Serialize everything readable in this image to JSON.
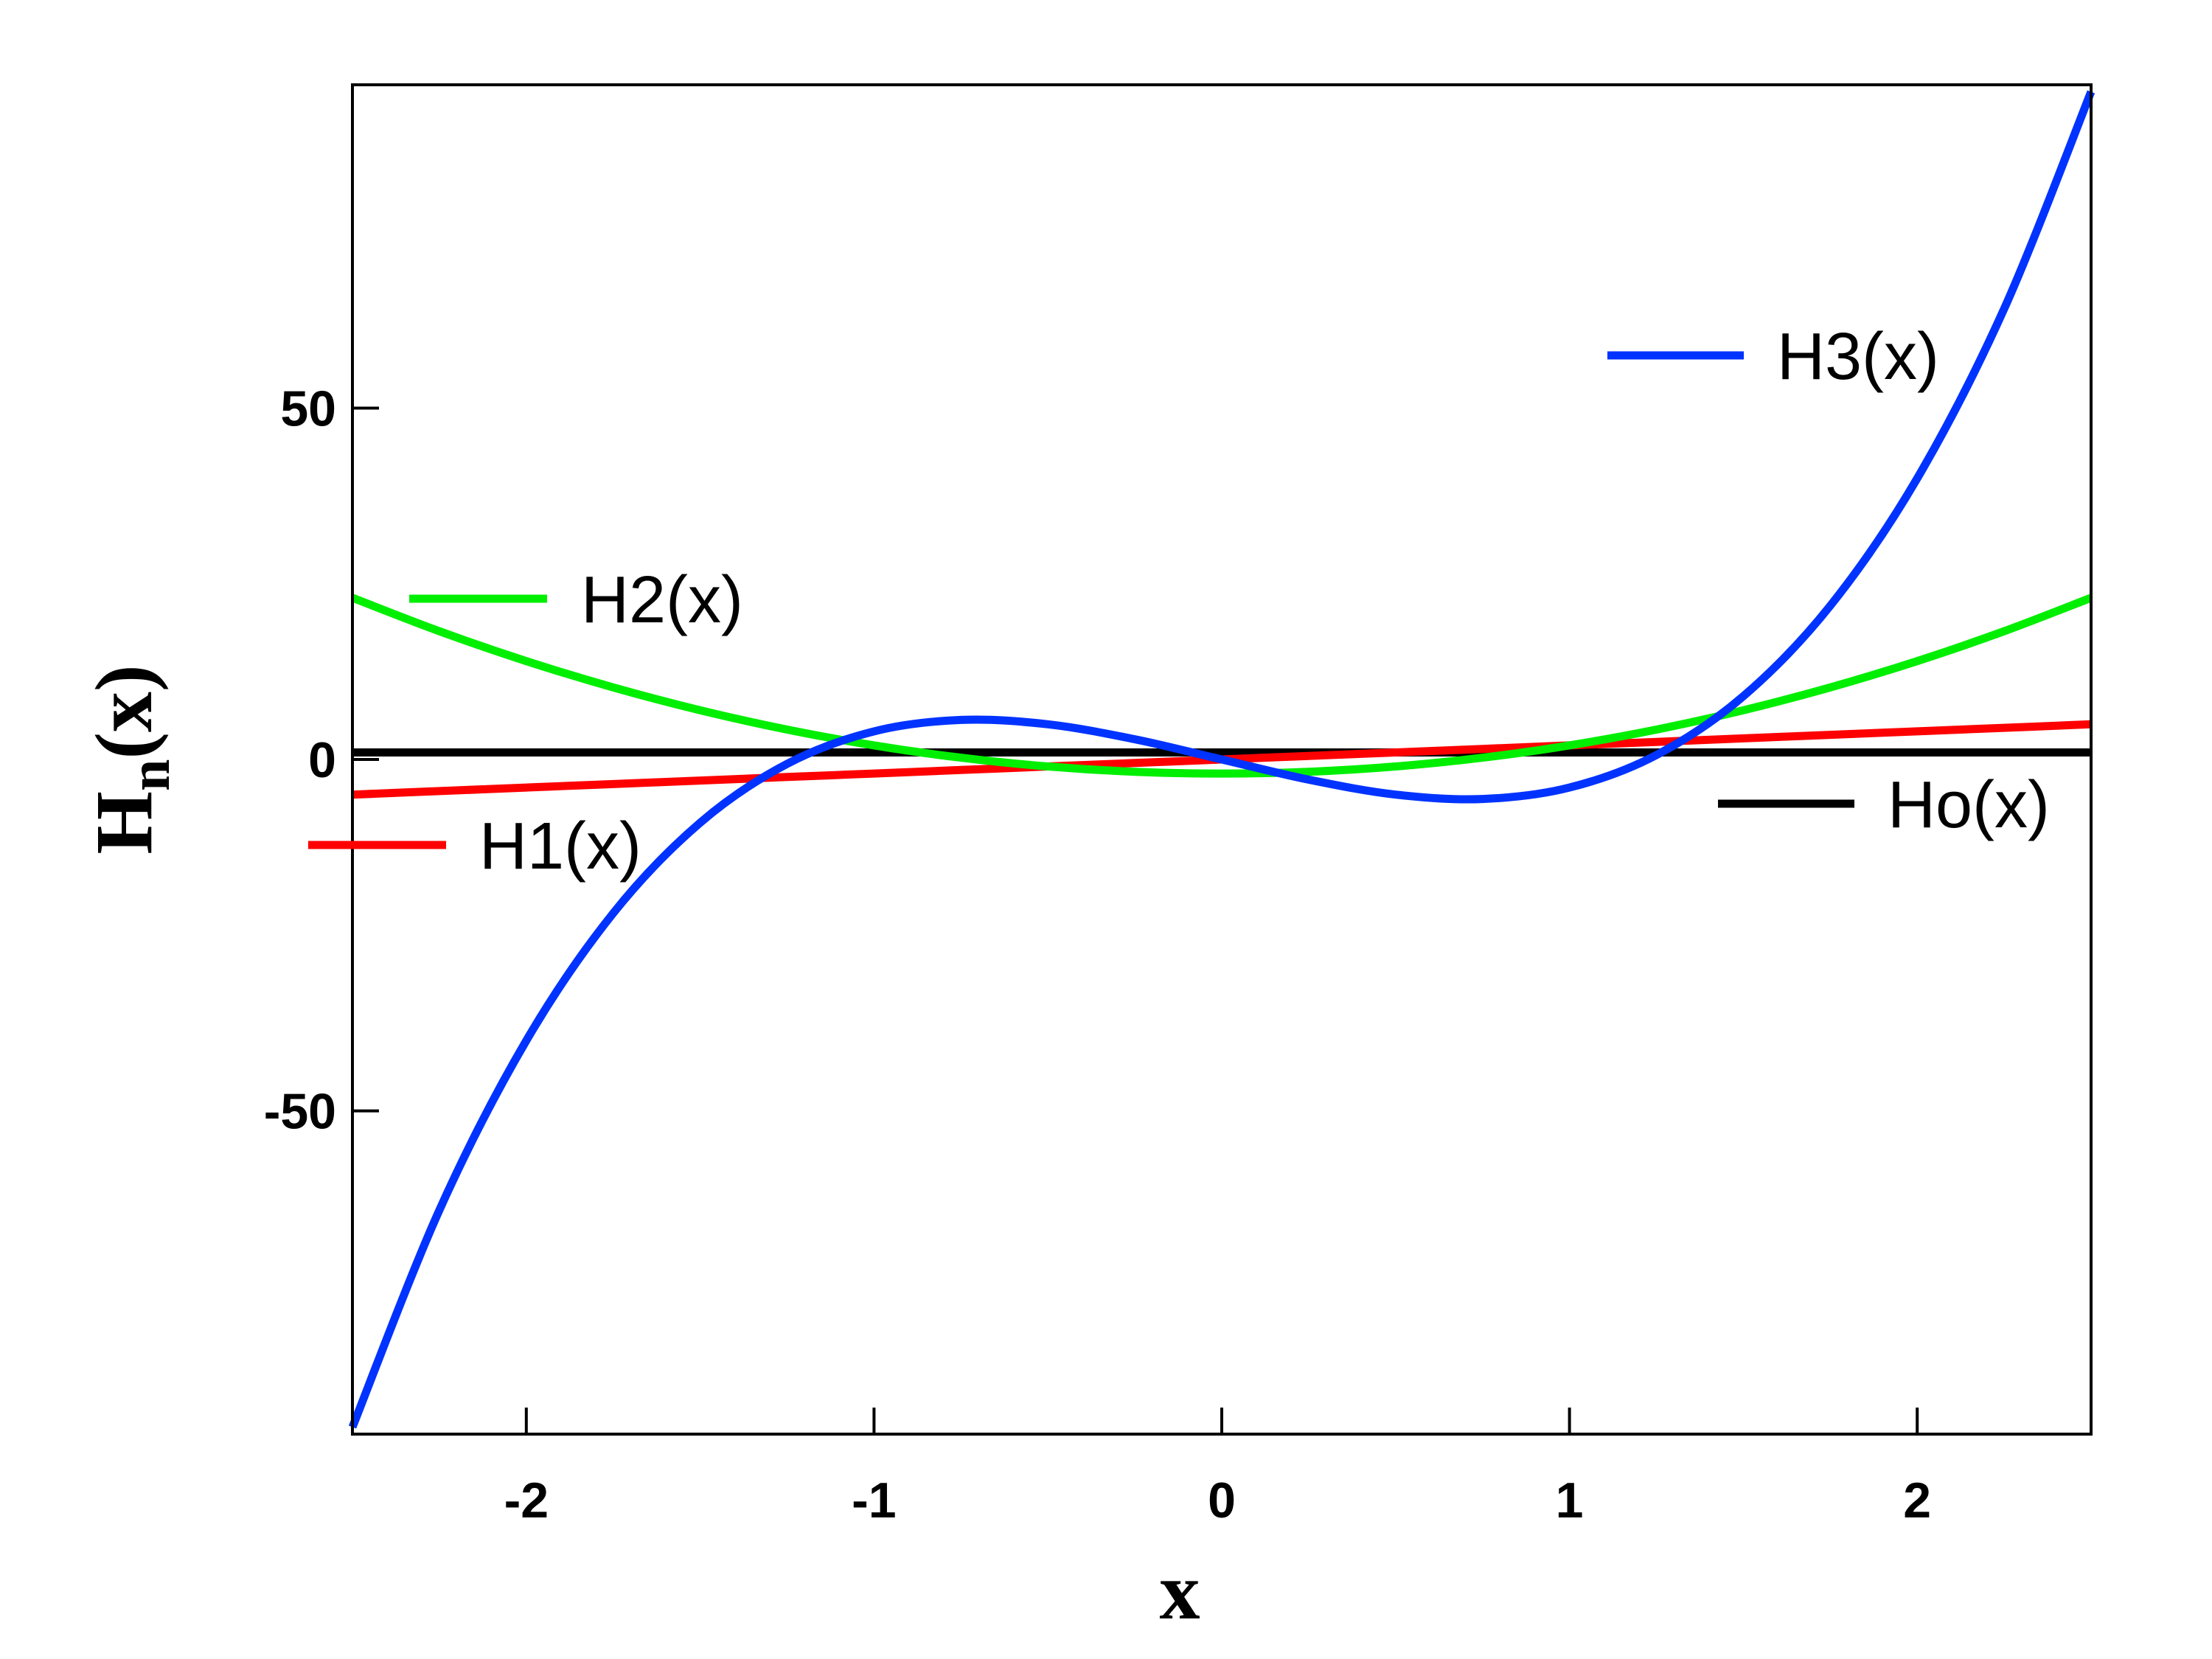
{
  "chart_data": {
    "type": "line",
    "title": "",
    "xlabel": "x",
    "ylabel": {
      "main": "H",
      "subscript": "n",
      "suffix": "(x)"
    },
    "xlim": [
      -2.5,
      2.5
    ],
    "ylim": [
      -96,
      96
    ],
    "x_ticks": [
      -2,
      -1,
      0,
      1,
      2
    ],
    "x_tick_labels": [
      "-2",
      "-1",
      "0",
      "1",
      "2"
    ],
    "y_ticks": [
      -50,
      0,
      50
    ],
    "y_tick_labels": [
      "-50",
      "0",
      "50"
    ],
    "grid": false,
    "x_samples": [
      -2.5,
      -2.25,
      -2.0,
      -1.75,
      -1.5,
      -1.25,
      -1.0,
      -0.75,
      -0.5,
      -0.25,
      0.0,
      0.25,
      0.5,
      0.75,
      1.0,
      1.25,
      1.5,
      1.75,
      2.0,
      2.25,
      2.5
    ],
    "series": [
      {
        "name": "Ho(x)",
        "color": "#000000",
        "values": [
          1,
          1,
          1,
          1,
          1,
          1,
          1,
          1,
          1,
          1,
          1,
          1,
          1,
          1,
          1,
          1,
          1,
          1,
          1,
          1,
          1
        ]
      },
      {
        "name": "H1(x)",
        "color": "#ff0000",
        "values": [
          -5,
          -4.5,
          -4,
          -3.5,
          -3,
          -2.5,
          -2,
          -1.5,
          -1,
          -0.5,
          0,
          0.5,
          1,
          1.5,
          2,
          2.5,
          3,
          3.5,
          4,
          4.5,
          5
        ]
      },
      {
        "name": "H2(x)",
        "color": "#00ee00",
        "values": [
          23,
          18.25,
          14,
          10.25,
          7,
          4.25,
          2,
          0.25,
          -1,
          -1.75,
          -2,
          -1.75,
          -1,
          0.25,
          2,
          4.25,
          7,
          10.25,
          14,
          18.25,
          23
        ]
      },
      {
        "name": "H3(x)",
        "color": "#0033ff",
        "values": [
          -95,
          -64.125,
          -40,
          -21.875,
          -9,
          -0.625,
          4,
          5.625,
          5,
          2.875,
          0,
          -2.875,
          -5,
          -5.625,
          -4,
          0.625,
          9,
          21.875,
          40,
          64.125,
          95
        ]
      }
    ]
  }
}
